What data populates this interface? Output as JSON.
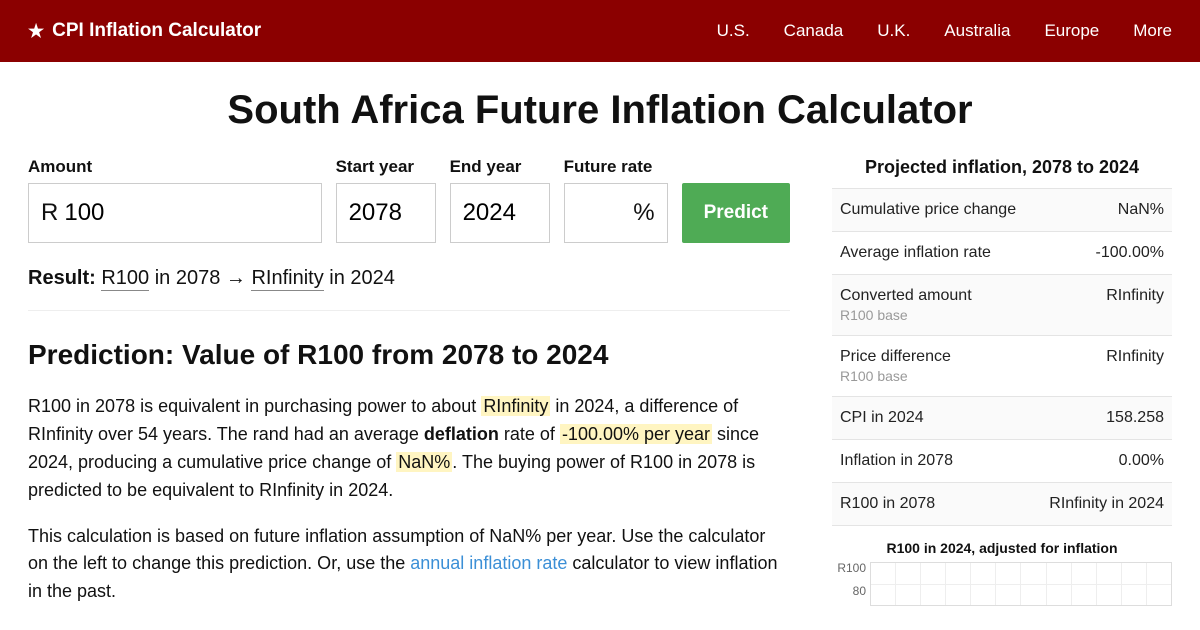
{
  "header": {
    "brand": "CPI Inflation Calculator",
    "nav": [
      "U.S.",
      "Canada",
      "U.K.",
      "Australia",
      "Europe",
      "More"
    ]
  },
  "page_title": "South Africa Future Inflation Calculator",
  "form": {
    "amount_label": "Amount",
    "amount_currency": "R",
    "amount_value": "100",
    "start_year_label": "Start year",
    "start_year_value": "2078",
    "end_year_label": "End year",
    "end_year_value": "2024",
    "future_rate_label": "Future rate",
    "future_rate_value": "",
    "rate_suffix": "%",
    "predict_label": "Predict"
  },
  "result": {
    "prefix": "Result:",
    "from_amount": "R100",
    "from_year": "in 2078",
    "arrow": "→",
    "to_amount": "RInfinity",
    "to_year": "in 2024"
  },
  "prediction_heading": "Prediction: Value of R100 from 2078 to 2024",
  "para1": {
    "t1": "R100 in 2078 is equivalent in purchasing power to about ",
    "hl1": "RInfinity",
    "t2": " in 2024, a difference of RInfinity over 54 years. The rand had an average ",
    "bold1": "deflation",
    "t3": " rate of ",
    "hl2": "-100.00% per year",
    "t4": " since 2024, producing a cumulative price change of ",
    "hl3": "NaN%",
    "t5": ". The buying power of R100 in 2078 is predicted to be equivalent to RInfinity in 2024."
  },
  "para2": {
    "t1": "This calculation is based on future inflation assumption of NaN% per year. Use the calculator on the left to change this prediction. Or, use the ",
    "link": "annual inflation rate",
    "t2": " calculator to view inflation in the past."
  },
  "sidebar": {
    "title": "Projected inflation, 2078 to 2024",
    "rows": [
      {
        "label": "Cumulative price change",
        "value": "NaN%"
      },
      {
        "label": "Average inflation rate",
        "value": "-100.00%"
      },
      {
        "label": "Converted amount",
        "sub": "R100 base",
        "value": "RInfinity"
      },
      {
        "label": "Price difference",
        "sub": "R100 base",
        "value": "RInfinity"
      },
      {
        "label": "CPI in 2024",
        "value": "158.258"
      },
      {
        "label": "Inflation in 2078",
        "value": "0.00%"
      },
      {
        "label": "R100 in 2078",
        "value": "RInfinity in 2024"
      }
    ],
    "chart_title": "R100 in 2024, adjusted for inflation",
    "chart": {
      "y_labels": [
        "R100",
        "80"
      ],
      "ylim": [
        60,
        100
      ],
      "vline_count": 12,
      "grid_color": "#eeeeee",
      "border_color": "#dddddd"
    }
  },
  "colors": {
    "header_bg": "#8b0000",
    "predict_bg": "#4fab55",
    "highlight_bg": "#fff5c2",
    "link_color": "#3b8fd6"
  }
}
